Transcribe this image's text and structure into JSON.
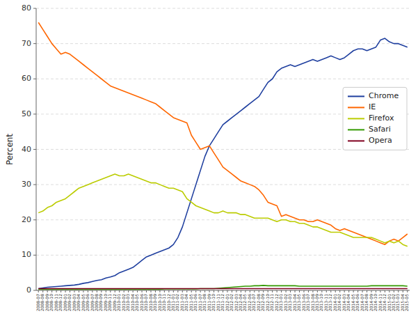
{
  "chart_data": {
    "type": "line",
    "ylabel": "Percent",
    "categories": [
      "2008-07",
      "2008-08",
      "2008-09",
      "2008-10",
      "2008-11",
      "2008-12",
      "2009-01",
      "2009-02",
      "2009-03",
      "2009-04",
      "2009-05",
      "2009-06",
      "2009-07",
      "2009-08",
      "2009-09",
      "2009-10",
      "2009-11",
      "2009-12",
      "2010-01",
      "2010-02",
      "2010-03",
      "2010-04",
      "2010-05",
      "2010-06",
      "2010-07",
      "2010-08",
      "2010-09",
      "2010-10",
      "2010-11",
      "2010-12",
      "2011-01",
      "2011-02",
      "2011-03",
      "2011-04",
      "2011-05",
      "2011-06",
      "2011-07",
      "2011-08",
      "2011-09",
      "2011-10",
      "2011-11",
      "2011-12",
      "2012-01",
      "2012-02",
      "2012-03",
      "2012-04",
      "2012-05",
      "2012-06",
      "2012-07",
      "2012-08",
      "2012-09",
      "2012-10",
      "2012-11",
      "2012-12",
      "2013-01",
      "2013-02",
      "2013-03",
      "2013-04",
      "2013-05",
      "2013-06",
      "2013-07",
      "2013-08",
      "2013-09",
      "2013-10",
      "2013-11",
      "2013-12",
      "2014-01",
      "2014-02",
      "2014-03",
      "2014-04",
      "2014-05",
      "2014-06",
      "2014-07",
      "2014-08",
      "2014-09",
      "2014-10",
      "2014-11",
      "2014-12",
      "2015-01",
      "2015-02",
      "2015-03",
      "2015-04",
      "2015-05"
    ],
    "series": [
      {
        "name": "Chrome",
        "color": "#1f3f9f",
        "values": [
          0.5,
          0.7,
          0.9,
          1.0,
          1.1,
          1.2,
          1.3,
          1.4,
          1.5,
          1.7,
          2.0,
          2.2,
          2.5,
          2.8,
          3.0,
          3.5,
          3.8,
          4.2,
          5.0,
          5.5,
          6.0,
          6.5,
          7.5,
          8.5,
          9.5,
          10.0,
          10.5,
          11.0,
          11.5,
          12.0,
          13.0,
          15.0,
          18.0,
          22.0,
          26.0,
          30.0,
          34.0,
          38.0,
          41.0,
          43.0,
          45.0,
          47.0,
          48.0,
          49.0,
          50.0,
          51.0,
          52.0,
          53.0,
          54.0,
          55.0,
          57.0,
          59.0,
          60.0,
          62.0,
          63.0,
          63.5,
          64.0,
          63.5,
          64.0,
          64.5,
          65.0,
          65.5,
          65.0,
          65.5,
          66.0,
          66.5,
          66.0,
          65.5,
          66.0,
          67.0,
          68.0,
          68.5,
          68.5,
          68.0,
          68.5,
          69.0,
          71.0,
          71.5,
          70.5,
          70.0,
          70.0,
          69.5,
          69.0
        ]
      },
      {
        "name": "IE",
        "color": "#ff6600",
        "values": [
          76.0,
          74.0,
          72.0,
          70.0,
          68.5,
          67.0,
          67.5,
          67.0,
          66.0,
          65.0,
          64.0,
          63.0,
          62.0,
          61.0,
          60.0,
          59.0,
          58.0,
          57.5,
          57.0,
          56.5,
          56.0,
          55.5,
          55.0,
          54.5,
          54.0,
          53.5,
          53.0,
          52.0,
          51.0,
          50.0,
          49.0,
          48.5,
          48.0,
          47.5,
          44.0,
          42.0,
          40.0,
          40.5,
          41.0,
          39.0,
          37.0,
          35.0,
          34.0,
          33.0,
          32.0,
          31.0,
          30.5,
          30.0,
          29.5,
          28.5,
          27.0,
          25.0,
          24.5,
          24.0,
          21.0,
          21.5,
          21.0,
          20.5,
          20.0,
          20.0,
          19.5,
          19.5,
          20.0,
          19.5,
          19.0,
          18.5,
          17.5,
          17.0,
          17.5,
          17.0,
          16.5,
          16.0,
          15.5,
          15.0,
          14.5,
          14.0,
          13.5,
          13.0,
          14.0,
          14.5,
          14.0,
          15.0,
          16.0
        ]
      },
      {
        "name": "Firefox",
        "color": "#bbcc00",
        "values": [
          22.0,
          22.5,
          23.5,
          24.0,
          25.0,
          25.5,
          26.0,
          27.0,
          28.0,
          29.0,
          29.5,
          30.0,
          30.5,
          31.0,
          31.5,
          32.0,
          32.5,
          33.0,
          32.5,
          32.5,
          33.0,
          32.5,
          32.0,
          31.5,
          31.0,
          30.5,
          30.5,
          30.0,
          29.5,
          29.0,
          29.0,
          28.5,
          28.0,
          26.0,
          25.0,
          24.0,
          23.5,
          23.0,
          22.5,
          22.0,
          22.0,
          22.5,
          22.0,
          22.0,
          22.0,
          21.5,
          21.5,
          21.0,
          20.5,
          20.5,
          20.5,
          20.5,
          20.0,
          19.5,
          20.0,
          20.0,
          19.5,
          19.5,
          19.0,
          19.0,
          18.5,
          18.0,
          18.0,
          17.5,
          17.0,
          16.5,
          16.5,
          16.5,
          16.0,
          15.5,
          15.0,
          15.0,
          15.0,
          15.0,
          15.0,
          14.5,
          14.0,
          13.5,
          14.0,
          13.5,
          14.0,
          13.0,
          12.5
        ]
      },
      {
        "name": "Safari",
        "color": "#339900",
        "values": [
          0.3,
          0.3,
          0.3,
          0.3,
          0.3,
          0.3,
          0.3,
          0.3,
          0.3,
          0.3,
          0.3,
          0.3,
          0.3,
          0.3,
          0.3,
          0.3,
          0.3,
          0.3,
          0.3,
          0.3,
          0.3,
          0.3,
          0.3,
          0.3,
          0.3,
          0.3,
          0.3,
          0.3,
          0.4,
          0.4,
          0.4,
          0.4,
          0.4,
          0.4,
          0.4,
          0.4,
          0.5,
          0.5,
          0.5,
          0.5,
          0.6,
          0.7,
          0.8,
          0.9,
          1.0,
          1.1,
          1.2,
          1.2,
          1.3,
          1.3,
          1.4,
          1.3,
          1.3,
          1.3,
          1.3,
          1.3,
          1.3,
          1.3,
          1.2,
          1.2,
          1.2,
          1.2,
          1.2,
          1.2,
          1.2,
          1.2,
          1.2,
          1.2,
          1.2,
          1.2,
          1.2,
          1.2,
          1.2,
          1.2,
          1.3,
          1.3,
          1.3,
          1.3,
          1.3,
          1.3,
          1.3,
          1.3,
          1.2
        ]
      },
      {
        "name": "Opera",
        "color": "#800020",
        "values": [
          0.5,
          0.5,
          0.5,
          0.5,
          0.5,
          0.5,
          0.5,
          0.5,
          0.5,
          0.5,
          0.5,
          0.5,
          0.5,
          0.5,
          0.5,
          0.5,
          0.5,
          0.5,
          0.5,
          0.5,
          0.5,
          0.5,
          0.5,
          0.5,
          0.5,
          0.5,
          0.5,
          0.5,
          0.5,
          0.5,
          0.5,
          0.5,
          0.5,
          0.5,
          0.5,
          0.5,
          0.5,
          0.5,
          0.5,
          0.5,
          0.5,
          0.5,
          0.5,
          0.5,
          0.5,
          0.5,
          0.5,
          0.5,
          0.5,
          0.5,
          0.5,
          0.5,
          0.5,
          0.5,
          0.5,
          0.5,
          0.5,
          0.5,
          0.5,
          0.5,
          0.5,
          0.5,
          0.5,
          0.5,
          0.5,
          0.5,
          0.5,
          0.5,
          0.5,
          0.5,
          0.5,
          0.5,
          0.5,
          0.5,
          0.5,
          0.5,
          0.5,
          0.5,
          0.5,
          0.5,
          0.5,
          0.5,
          0.5
        ]
      }
    ],
    "ylim": [
      0,
      80
    ],
    "yticks": [
      0,
      10,
      20,
      30,
      40,
      50,
      60,
      70,
      80
    ],
    "grid": true,
    "legend": "upper right"
  }
}
